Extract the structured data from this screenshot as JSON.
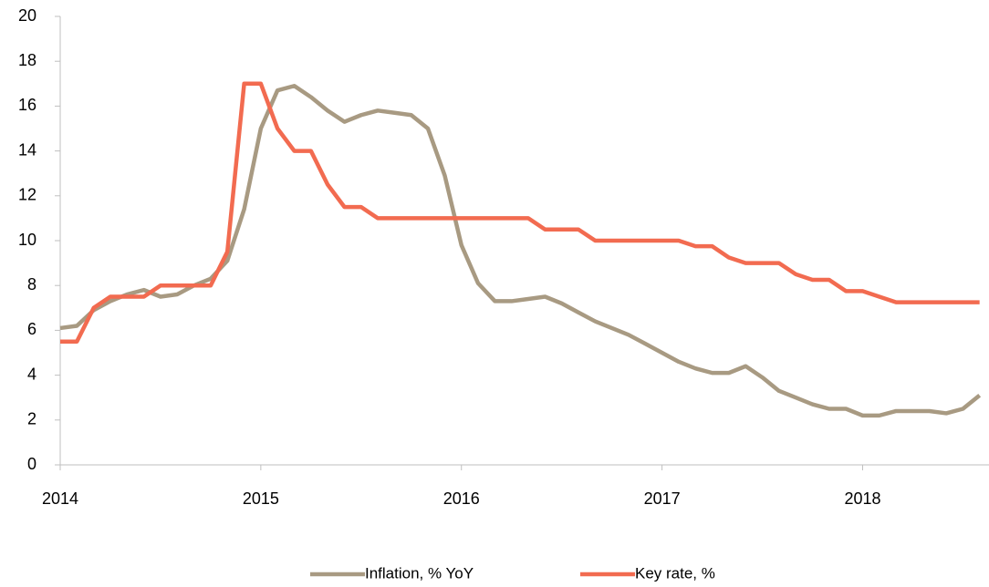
{
  "chart_data": {
    "type": "line",
    "x": [
      2014,
      2014.083,
      2014.167,
      2014.25,
      2014.333,
      2014.417,
      2014.5,
      2014.583,
      2014.667,
      2014.75,
      2014.833,
      2014.917,
      2015,
      2015.083,
      2015.167,
      2015.25,
      2015.333,
      2015.417,
      2015.5,
      2015.583,
      2015.667,
      2015.75,
      2015.833,
      2015.917,
      2016,
      2016.083,
      2016.167,
      2016.25,
      2016.333,
      2016.417,
      2016.5,
      2016.583,
      2016.667,
      2016.75,
      2016.833,
      2016.917,
      2017,
      2017.083,
      2017.167,
      2017.25,
      2017.333,
      2017.417,
      2017.5,
      2017.583,
      2017.667,
      2017.75,
      2017.833,
      2017.917,
      2018,
      2018.083,
      2018.167,
      2018.25,
      2018.333,
      2018.417,
      2018.5,
      2018.583
    ],
    "series": [
      {
        "name": "Inflation, % YoY",
        "color": "#a89a82",
        "values": [
          6.1,
          6.2,
          6.9,
          7.3,
          7.6,
          7.8,
          7.5,
          7.6,
          8.0,
          8.3,
          9.1,
          11.4,
          15.0,
          16.7,
          16.9,
          16.4,
          15.8,
          15.3,
          15.6,
          15.8,
          15.7,
          15.6,
          15.0,
          12.9,
          9.8,
          8.1,
          7.3,
          7.3,
          7.4,
          7.5,
          7.2,
          6.8,
          6.4,
          6.1,
          5.8,
          5.4,
          5.0,
          4.6,
          4.3,
          4.1,
          4.1,
          4.4,
          3.9,
          3.3,
          3.0,
          2.7,
          2.5,
          2.5,
          2.2,
          2.2,
          2.4,
          2.4,
          2.4,
          2.3,
          2.5,
          3.1
        ]
      },
      {
        "name": "Key rate, %",
        "color": "#f26b50",
        "values": [
          5.5,
          5.5,
          7.0,
          7.5,
          7.5,
          7.5,
          8.0,
          8.0,
          8.0,
          8.0,
          9.5,
          17.0,
          17.0,
          15.0,
          14.0,
          14.0,
          12.5,
          11.5,
          11.5,
          11.0,
          11.0,
          11.0,
          11.0,
          11.0,
          11.0,
          11.0,
          11.0,
          11.0,
          11.0,
          10.5,
          10.5,
          10.5,
          10.0,
          10.0,
          10.0,
          10.0,
          10.0,
          10.0,
          9.75,
          9.75,
          9.25,
          9.0,
          9.0,
          9.0,
          8.5,
          8.25,
          8.25,
          7.75,
          7.75,
          7.5,
          7.25,
          7.25,
          7.25,
          7.25,
          7.25,
          7.25
        ]
      }
    ],
    "xlim": [
      2014,
      2018.63
    ],
    "xticks": [
      2014,
      2015,
      2016,
      2017,
      2018
    ],
    "ylim": [
      0,
      20
    ],
    "yticks": [
      0,
      2,
      4,
      6,
      8,
      10,
      12,
      14,
      16,
      18,
      20
    ],
    "grid": false,
    "legend": "bottom"
  }
}
